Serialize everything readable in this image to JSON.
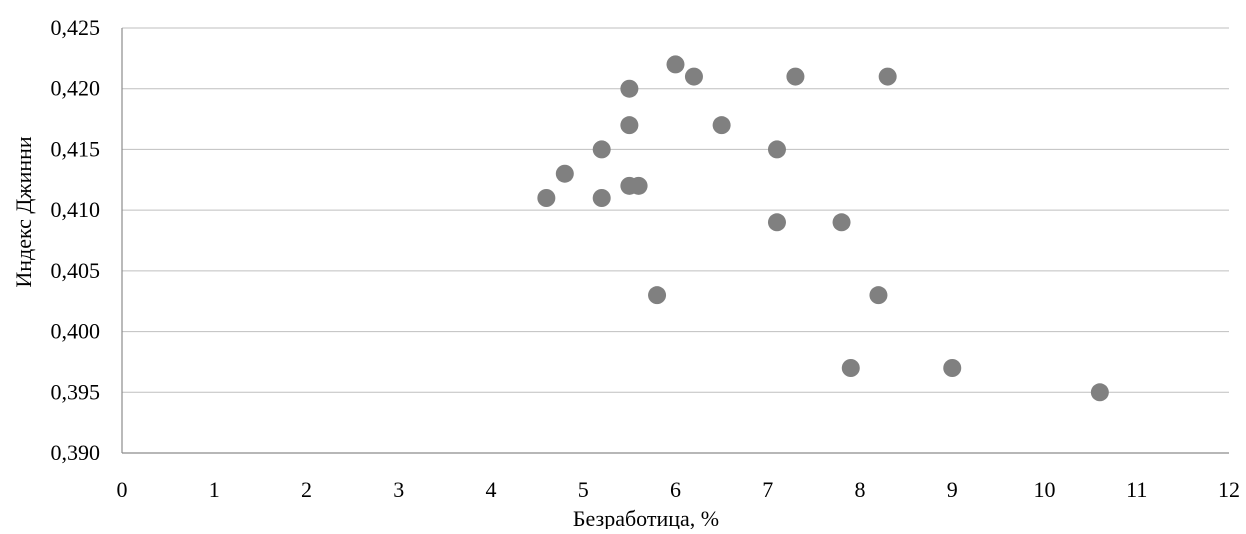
{
  "chart_data": {
    "type": "scatter",
    "title": "",
    "xlabel": "Безработица, %",
    "ylabel": "Индекс Джинни",
    "xlim": [
      0,
      12
    ],
    "ylim": [
      0.39,
      0.425
    ],
    "grid": "horizontal",
    "legend": "none",
    "marker_color": "#808080",
    "x_ticks": [
      "0",
      "1",
      "2",
      "3",
      "4",
      "5",
      "6",
      "7",
      "8",
      "9",
      "10",
      "11",
      "12"
    ],
    "y_ticks": [
      "0,390",
      "0,395",
      "0,400",
      "0,405",
      "0,410",
      "0,415",
      "0,420",
      "0,425"
    ],
    "series": [
      {
        "points": [
          {
            "x": 4.6,
            "y": 0.411
          },
          {
            "x": 4.8,
            "y": 0.413
          },
          {
            "x": 5.2,
            "y": 0.415
          },
          {
            "x": 5.2,
            "y": 0.411
          },
          {
            "x": 5.5,
            "y": 0.42
          },
          {
            "x": 5.5,
            "y": 0.417
          },
          {
            "x": 5.5,
            "y": 0.412
          },
          {
            "x": 5.6,
            "y": 0.412
          },
          {
            "x": 5.8,
            "y": 0.403
          },
          {
            "x": 6.0,
            "y": 0.422
          },
          {
            "x": 6.2,
            "y": 0.421
          },
          {
            "x": 6.5,
            "y": 0.417
          },
          {
            "x": 7.1,
            "y": 0.415
          },
          {
            "x": 7.1,
            "y": 0.409
          },
          {
            "x": 7.3,
            "y": 0.421
          },
          {
            "x": 7.8,
            "y": 0.409
          },
          {
            "x": 7.9,
            "y": 0.397
          },
          {
            "x": 8.2,
            "y": 0.403
          },
          {
            "x": 8.3,
            "y": 0.421
          },
          {
            "x": 9.0,
            "y": 0.397
          },
          {
            "x": 10.6,
            "y": 0.395
          }
        ]
      }
    ]
  }
}
